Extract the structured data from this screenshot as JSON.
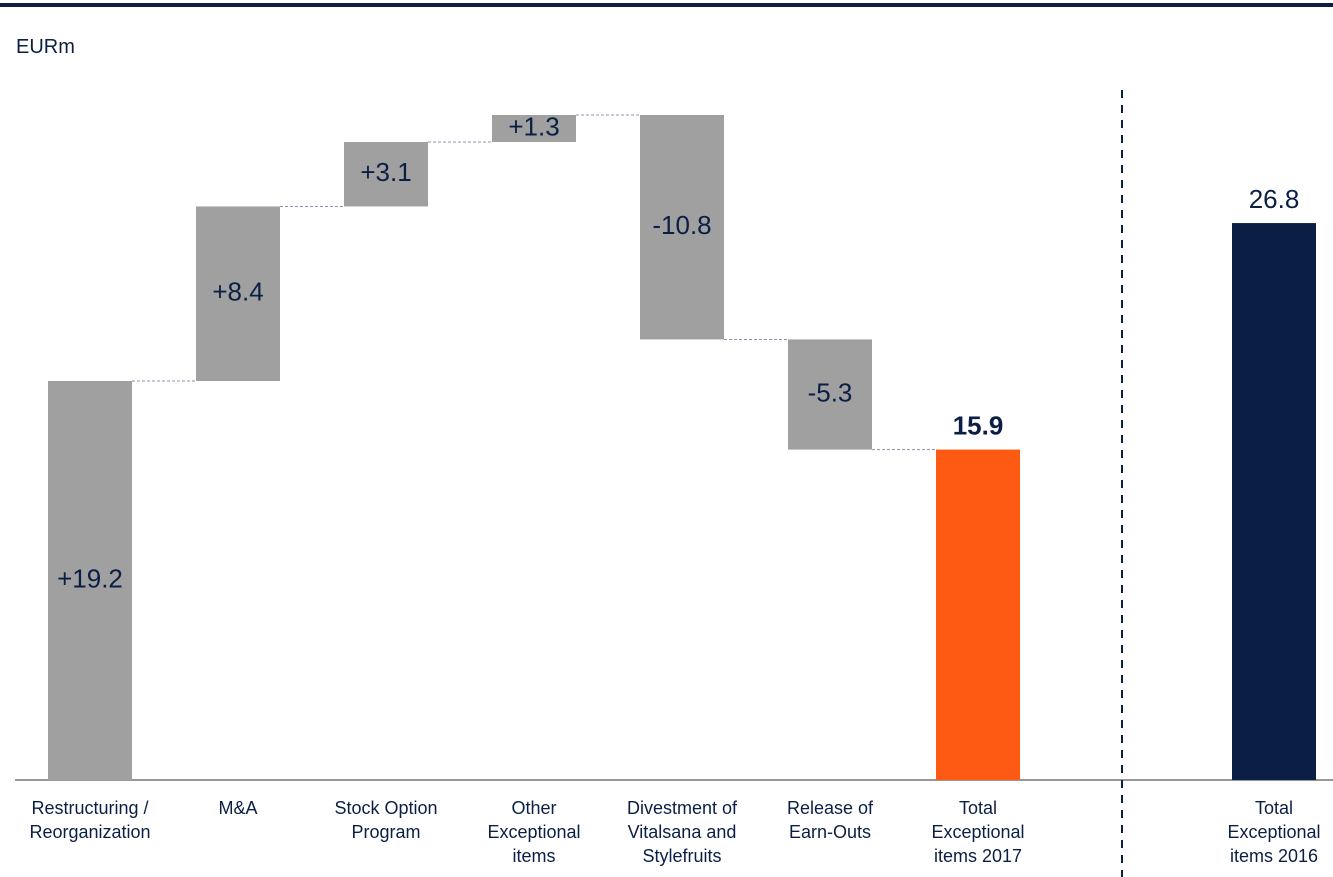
{
  "chart_data": {
    "type": "waterfall",
    "y_label": "EURm",
    "categories": [
      "Restructuring /\nReorganization",
      "M&A",
      "Stock Option\nProgram",
      "Other\nExceptional\nitems",
      "Divestment of\nVitalsana and\nStylefruits",
      "Release of\nEarn-Outs",
      "Total\nExceptional\nitems 2017",
      "Total\nExceptional\nitems 2016"
    ],
    "values": [
      19.2,
      8.4,
      3.1,
      1.3,
      -10.8,
      -5.3,
      15.9,
      26.8
    ],
    "value_labels": [
      "+19.2",
      "+8.4",
      "+3.1",
      "+1.3",
      "-10.8",
      "-5.3",
      "15.9",
      "26.8"
    ],
    "measures": [
      "relative",
      "relative",
      "relative",
      "relative",
      "relative",
      "relative",
      "total",
      "total"
    ],
    "colors": [
      "#a0a0a0",
      "#a0a0a0",
      "#a0a0a0",
      "#a0a0a0",
      "#a0a0a0",
      "#a0a0a0",
      "#ff5a14",
      "#0b1f45"
    ]
  }
}
